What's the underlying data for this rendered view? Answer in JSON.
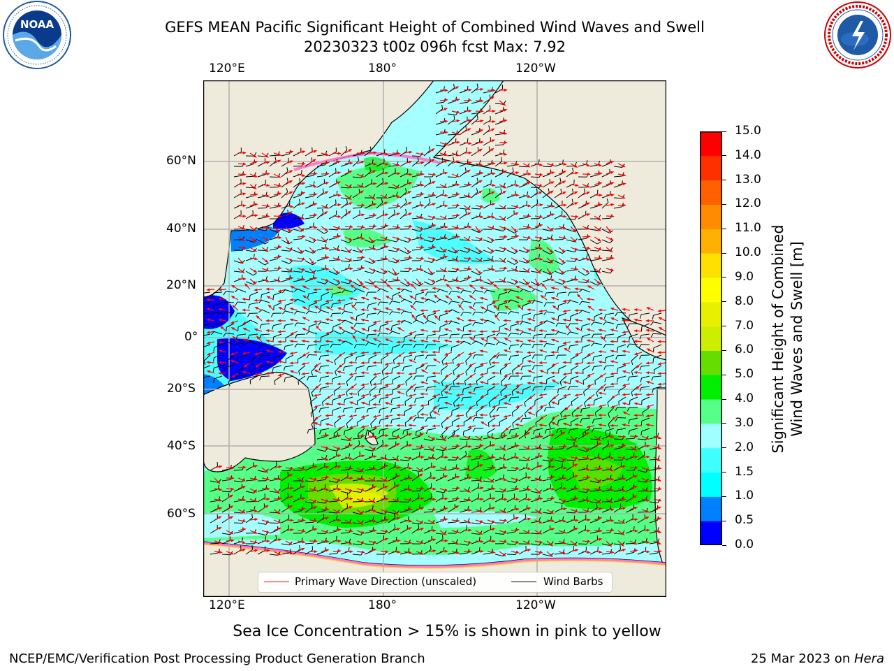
{
  "header": {
    "title_line1": "GEFS MEAN Pacific Significant Height of Combined Wind Waves and Swell",
    "title_line2": "20230323 t00z 096h fcst   Max: 7.92"
  },
  "logos": {
    "noaa": {
      "text": "NOAA",
      "ring_text": "NATIONAL OCEANIC AND ATMOSPHERIC ADMINISTRATION · U.S. DEPARTMENT OF COMMERCE"
    },
    "nws": {
      "ring_text": "NATIONAL WEATHER SERVICE"
    }
  },
  "map": {
    "top_lon_labels": [
      "120°E",
      "180°",
      "120°W"
    ],
    "bottom_lon_labels": [
      "120°E",
      "180°",
      "120°W"
    ],
    "lat_labels": [
      "60°N",
      "40°N",
      "20°N",
      "0°",
      "20°S",
      "40°S",
      "60°S"
    ],
    "legend": {
      "wave_direction": "Primary Wave Direction (unscaled)",
      "wind_barbs": "Wind Barbs"
    },
    "colors": {
      "land": "#efebdc",
      "grid": "#b0b0b0",
      "arrow": "#ff0000",
      "barb": "#000000",
      "ice": "#ff66cc"
    }
  },
  "colorbar": {
    "label_line1": "Significant Height of Combined",
    "label_line2": "Wind Waves and Swell [m]",
    "tick_labels": [
      "0.0",
      "0.5",
      "1.0",
      "1.5",
      "2.0",
      "3.0",
      "4.0",
      "5.0",
      "6.0",
      "7.0",
      "8.0",
      "9.0",
      "10.0",
      "11.0",
      "12.0",
      "13.0",
      "14.0",
      "15.0"
    ],
    "colors": [
      "#0000ff",
      "#0080ff",
      "#00ffff",
      "#40ffff",
      "#a0ffff",
      "#55ff88",
      "#00ee00",
      "#66dd00",
      "#ccee00",
      "#e8f000",
      "#ffff00",
      "#ffe000",
      "#ffb000",
      "#ff8c00",
      "#ff6000",
      "#ff3000",
      "#ff0000"
    ]
  },
  "caption": "Sea Ice Concentration > 15% is shown in pink to yellow",
  "footer": {
    "left": "NCEP/EMC/Verification Post Processing Product Generation Branch",
    "right_date": "25 Mar 2023 on ",
    "right_host": "Hera"
  }
}
